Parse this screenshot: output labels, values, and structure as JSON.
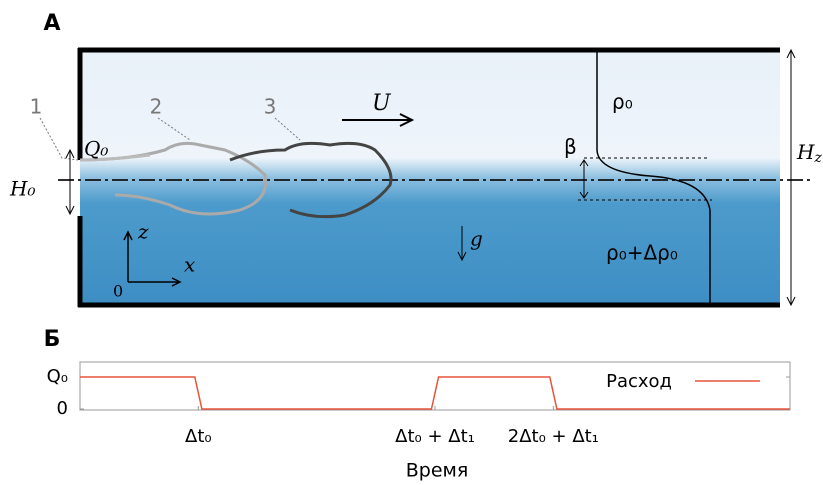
{
  "panel_a": {
    "label": "А",
    "plume_labels": [
      "1",
      "2",
      "3"
    ],
    "velocity": "U",
    "inflow": "Q₀",
    "inlet_height": "H₀",
    "rho_top": "ρ₀",
    "beta": "β",
    "rho_bottom": "ρ₀+Δρ₀",
    "gravity": "g",
    "axis_z": "z",
    "axis_x": "x",
    "origin": "0",
    "total_height": {
      "main": "H",
      "sub": "z"
    }
  },
  "chart_data": {
    "type": "line",
    "panel_label": "Б",
    "x_label": "Время",
    "x": [
      0,
      0.97,
      1.03,
      2.97,
      3.03,
      3.97,
      4.03,
      6
    ],
    "series": [
      {
        "name": "Расход",
        "color": "#e8543a",
        "values": [
          1,
          1,
          0,
          0,
          1,
          1,
          0,
          0
        ]
      }
    ],
    "xlim": [
      0,
      6
    ],
    "xticks": [
      {
        "value": 1,
        "label": "Δt₀"
      },
      {
        "value": 3,
        "label": "Δt₀ + Δt₁"
      },
      {
        "value": 4,
        "label": "2Δt₀ + Δt₁"
      }
    ],
    "ylim": [
      0,
      1.5
    ],
    "yticks": [
      {
        "value": 1,
        "label": "Q₀"
      },
      0
    ],
    "legend": "upper right"
  }
}
